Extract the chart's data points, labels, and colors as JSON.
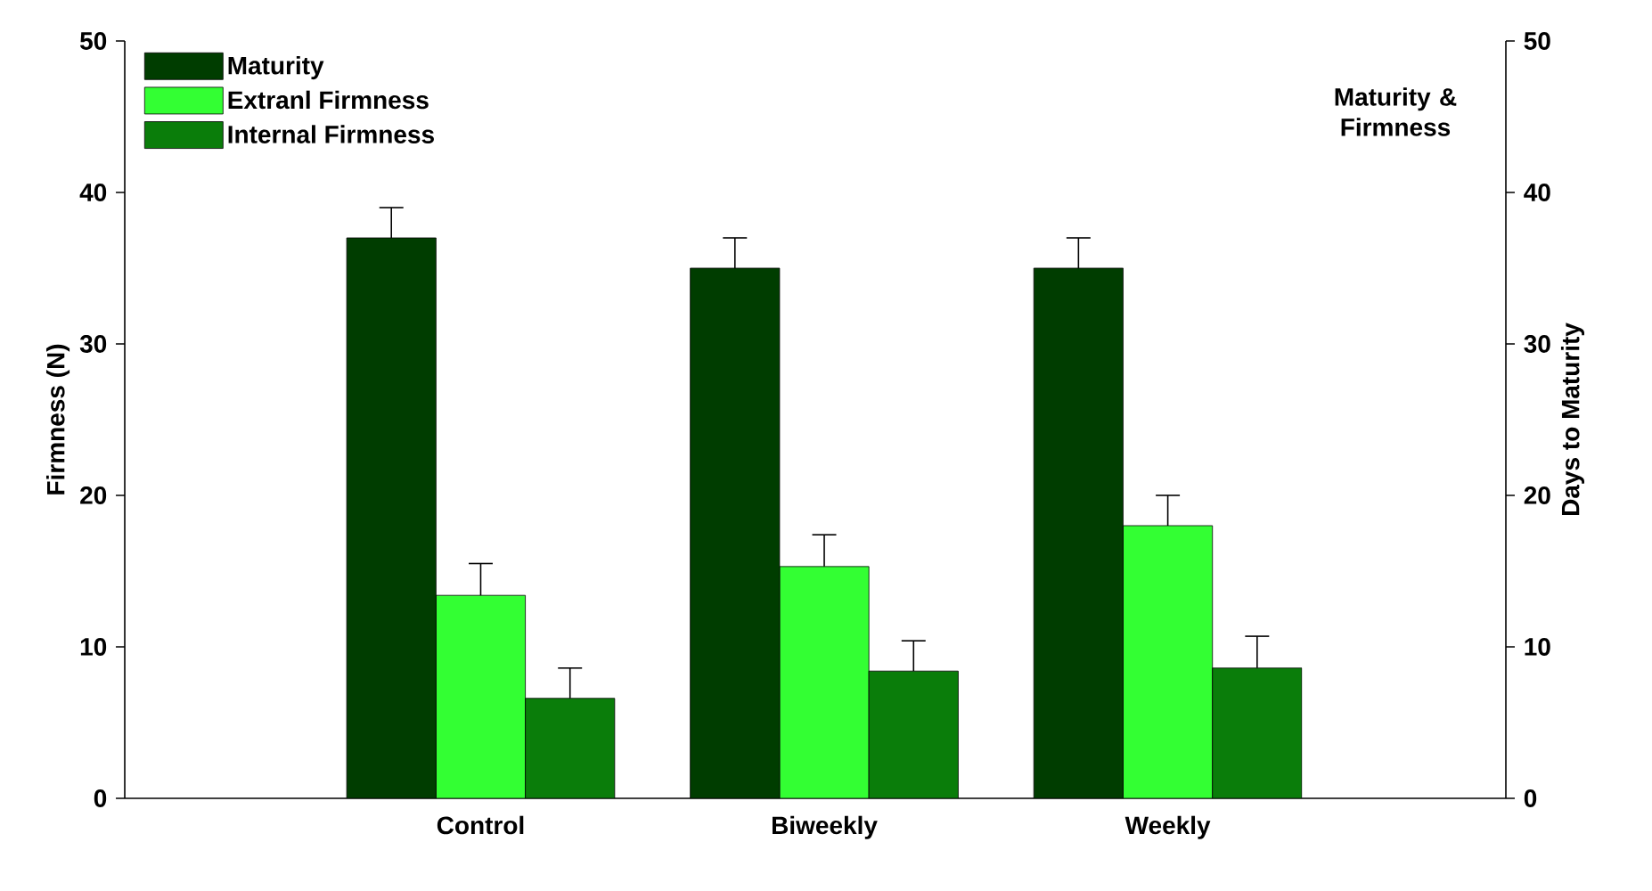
{
  "chart_data": {
    "type": "bar",
    "ylabel": "Firmness (N)",
    "y2label": "Days to Maturity",
    "annotations": [
      "Maturity & Firmness"
    ],
    "categories": [
      "Control",
      "Biweekly",
      "Weekly"
    ],
    "series": [
      {
        "name": "Maturity",
        "color": "#003d00",
        "axis": "y2",
        "values": [
          37,
          35,
          35
        ],
        "errors": [
          [
            37,
            39
          ],
          [
            35,
            37
          ],
          [
            35,
            37
          ]
        ]
      },
      {
        "name": "Extranl Firmness",
        "color": "#33ff33",
        "values": [
          13.4,
          15.3,
          18
        ],
        "errors": [
          [
            13.4,
            15.5
          ],
          [
            15.3,
            17.4
          ],
          [
            18,
            20
          ]
        ]
      },
      {
        "name": "Internal Firmness",
        "color": "#0a7d0a",
        "values": [
          6.6,
          8.4,
          8.6
        ],
        "errors": [
          [
            6.6,
            8.6
          ],
          [
            8.4,
            10.4
          ],
          [
            8.6,
            10.7
          ]
        ]
      }
    ],
    "ylim": [
      0,
      50
    ],
    "yticks": [
      0,
      10,
      20,
      30,
      40,
      50
    ],
    "y2lim": [
      0,
      50
    ],
    "y2ticks": [
      0,
      10,
      20,
      30,
      40,
      50
    ],
    "legend": "top left",
    "grid": false
  }
}
